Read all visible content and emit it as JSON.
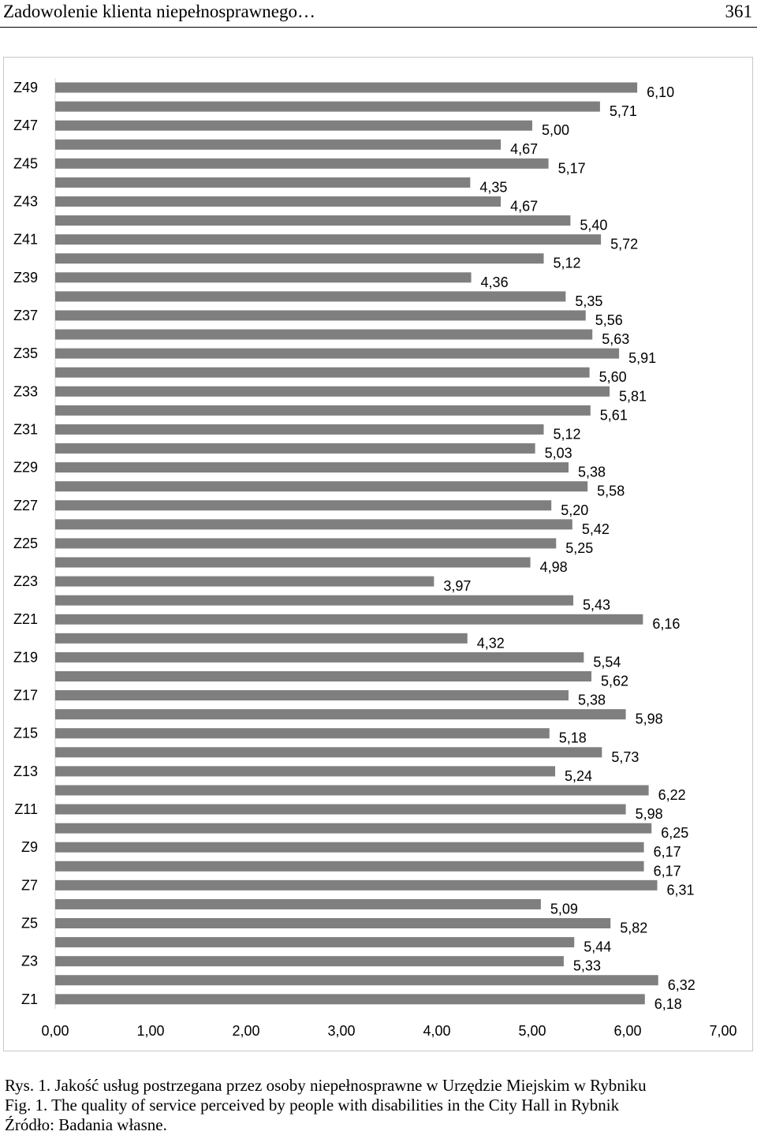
{
  "header": {
    "title": "Zadowolenie klienta niepełnosprawnego…",
    "page_number": "361"
  },
  "captions": {
    "pl": "Rys. 1. Jakość usług postrzegana przez osoby niepełnosprawne w Urzędzie Miejskim w Rybniku",
    "en": "Fig. 1. The quality of service perceived by people with disabilities in the City Hall in Rybnik",
    "source": "Źródło: Badania własne."
  },
  "chart_data": {
    "type": "bar",
    "orientation": "horizontal",
    "bar_color": "#7f7f7f",
    "xlim": [
      0,
      7
    ],
    "x_ticks": [
      "0,00",
      "1,00",
      "2,00",
      "3,00",
      "4,00",
      "5,00",
      "6,00",
      "7,00"
    ],
    "y_tick_labels": [
      "Z49",
      "Z47",
      "Z45",
      "Z43",
      "Z41",
      "Z39",
      "Z37",
      "Z35",
      "Z33",
      "Z31",
      "Z29",
      "Z27",
      "Z25",
      "Z23",
      "Z21",
      "Z19",
      "Z17",
      "Z15",
      "Z13",
      "Z11",
      "Z9",
      "Z7",
      "Z5",
      "Z3",
      "Z1"
    ],
    "values_top_to_bottom": [
      6.1,
      5.71,
      5.0,
      4.67,
      5.17,
      4.35,
      4.67,
      5.4,
      5.72,
      5.12,
      4.36,
      5.35,
      5.56,
      5.63,
      5.91,
      5.6,
      5.81,
      5.61,
      5.12,
      5.03,
      5.38,
      5.58,
      5.2,
      5.42,
      5.25,
      4.98,
      3.97,
      5.43,
      6.16,
      4.32,
      5.54,
      5.62,
      5.38,
      5.98,
      5.18,
      5.73,
      5.24,
      6.22,
      5.98,
      6.25,
      6.17,
      6.17,
      6.31,
      5.09,
      5.82,
      5.44,
      5.33,
      6.32,
      6.18
    ],
    "value_labels_top_to_bottom": [
      "6,10",
      "5,71",
      "5,00",
      "4,67",
      "5,17",
      "4,35",
      "4,67",
      "5,40",
      "5,72",
      "5,12",
      "4,36",
      "5,35",
      "5,56",
      "5,63",
      "5,91",
      "5,60",
      "5,81",
      "5,61",
      "5,12",
      "5,03",
      "5,38",
      "5,58",
      "5,20",
      "5,42",
      "5,25",
      "4,98",
      "3,97",
      "5,43",
      "6,16",
      "4,32",
      "5,54",
      "5,62",
      "5,38",
      "5,98",
      "5,18",
      "5,73",
      "5,24",
      "6,22",
      "5,98",
      "6,25",
      "6,17",
      "6,17",
      "6,31",
      "5,09",
      "5,82",
      "5,44",
      "5,33",
      "6,32",
      "6,18"
    ]
  }
}
